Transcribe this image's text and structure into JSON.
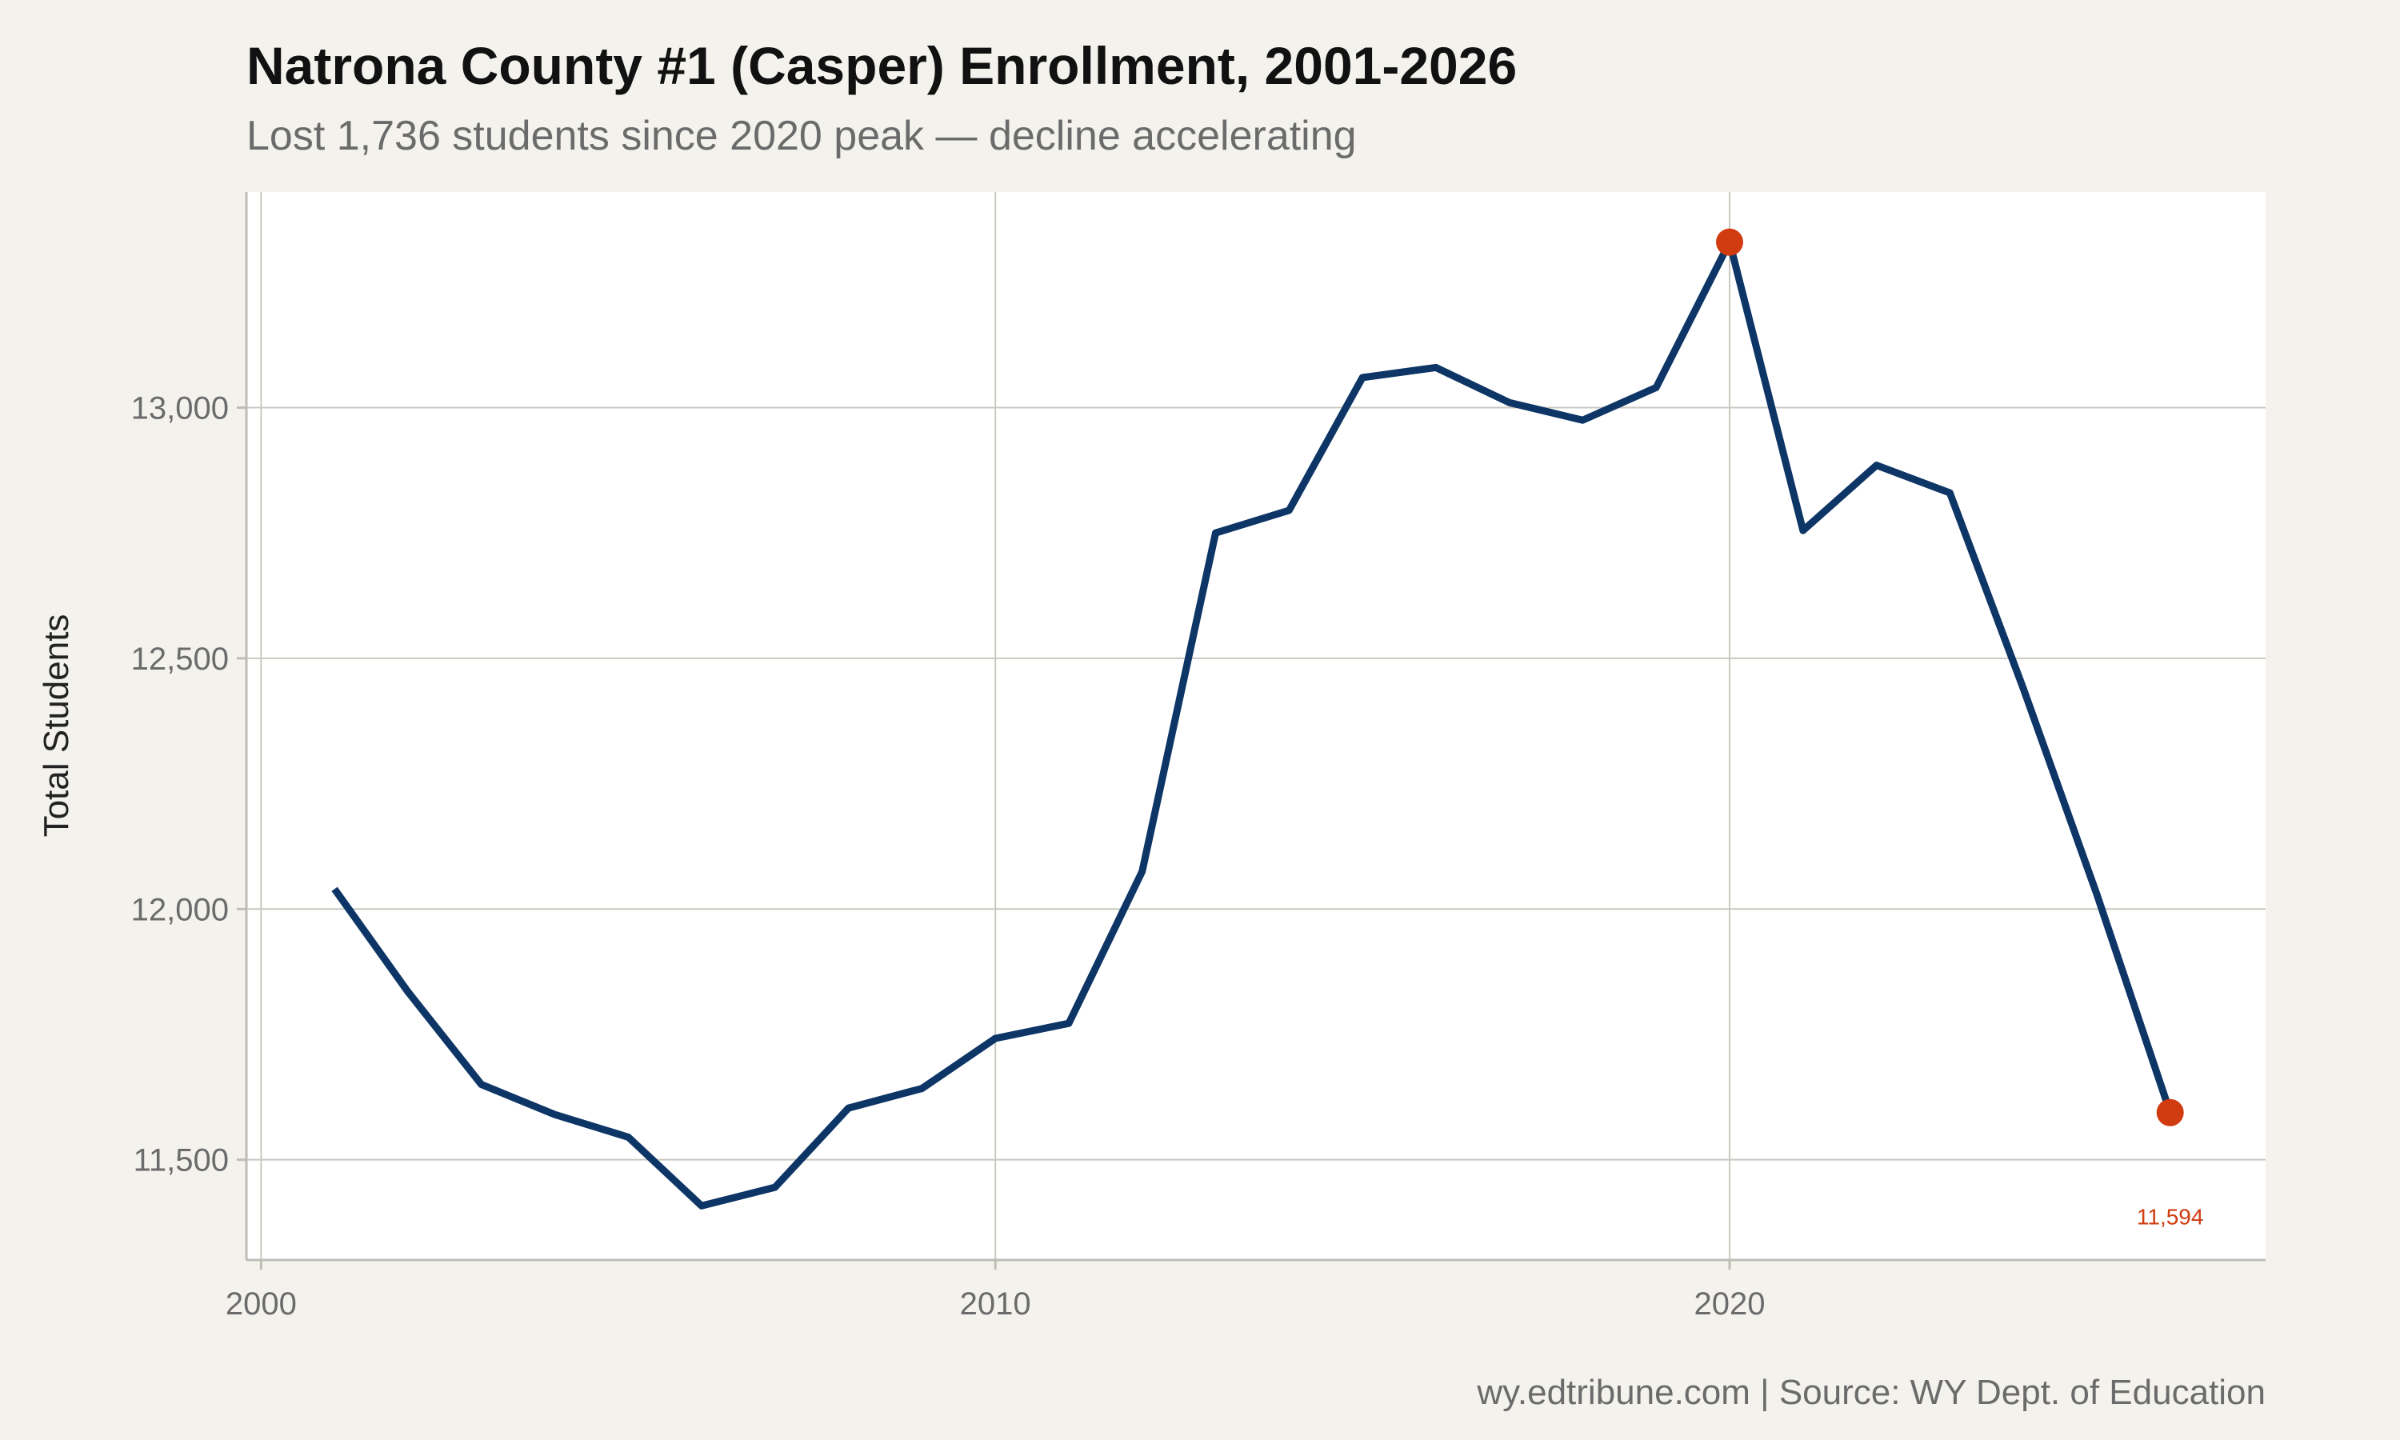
{
  "chart_data": {
    "type": "line",
    "title": "Natrona County #1 (Casper) Enrollment, 2001-2026",
    "subtitle": "Lost 1,736 students since 2020 peak — decline accelerating",
    "xlabel": "",
    "ylabel": "Total Students",
    "caption": "wy.edtribune.com | Source: WY Dept. of Education",
    "xlim": [
      1999.8,
      2027.3
    ],
    "ylim": [
      11300,
      13430
    ],
    "x_ticks": [
      2000,
      2010,
      2020
    ],
    "x_tick_labels": [
      "2000",
      "2010",
      "2020"
    ],
    "y_ticks": [
      11500,
      12000,
      12500,
      13000
    ],
    "y_tick_labels": [
      "11,500",
      "12,000",
      "12,500",
      "13,000"
    ],
    "grid": true,
    "legend": "none",
    "series": [
      {
        "x": [
          2001,
          2002,
          2003,
          2004,
          2005,
          2006,
          2007,
          2008,
          2009,
          2010,
          2011,
          2012,
          2013,
          2014,
          2015,
          2016,
          2017,
          2018,
          2019,
          2020,
          2021,
          2022,
          2023,
          2024,
          2025,
          2026
        ],
        "values": [
          12040,
          11835,
          11650,
          11590,
          11545,
          11408,
          11445,
          11603,
          11642,
          11742,
          11772,
          12075,
          12750,
          12795,
          13060,
          13080,
          13010,
          12975,
          13040,
          13330,
          12755,
          12885,
          12830,
          12440,
          12030,
          11594
        ],
        "color": "#0d3566"
      }
    ],
    "highlights": [
      {
        "x": 2020,
        "y": 13330,
        "color": "#d13b10"
      },
      {
        "x": 2026,
        "y": 11594,
        "color": "#d13b10",
        "label": "11,594"
      }
    ]
  }
}
